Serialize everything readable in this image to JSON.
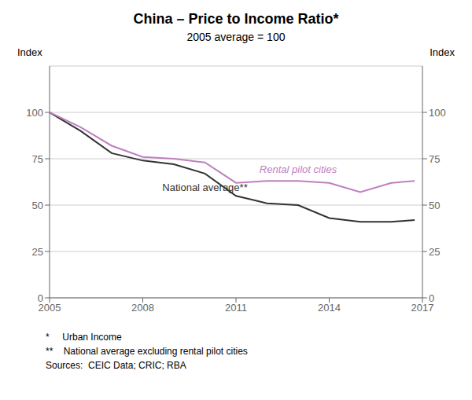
{
  "chart_data": {
    "type": "line",
    "title": "China – Price to Income Ratio*",
    "subtitle": "2005 average = 100",
    "ylabel": "Index",
    "y2label": "Index",
    "x": [
      2005,
      2006,
      2007,
      2008,
      2009,
      2010,
      2011,
      2012,
      2013,
      2014,
      2015,
      2016,
      2016.75
    ],
    "series": [
      {
        "name": "National average**",
        "color": "#333333",
        "values": [
          100,
          90,
          78,
          74,
          72,
          67,
          55,
          51,
          50,
          43,
          41,
          41,
          42
        ]
      },
      {
        "name": "Rental pilot cities",
        "color": "#bf7fbf",
        "values": [
          100,
          92,
          82,
          76,
          75,
          73,
          62,
          63,
          63,
          62,
          57,
          62,
          63
        ]
      }
    ],
    "xlim": [
      2005,
      2017
    ],
    "xticks": [
      2005,
      2008,
      2011,
      2014,
      2017
    ],
    "ylim": [
      0,
      125
    ],
    "yticks": [
      0,
      25,
      50,
      75,
      100
    ],
    "y2lim": [
      0,
      125
    ],
    "y2ticks": [
      0,
      25,
      50,
      75,
      100
    ],
    "grid": true,
    "footnotes": [
      "*     Urban Income",
      "**    National average excluding rental pilot cities",
      "Sources:  CEIC Data; CRIC; RBA"
    ]
  }
}
